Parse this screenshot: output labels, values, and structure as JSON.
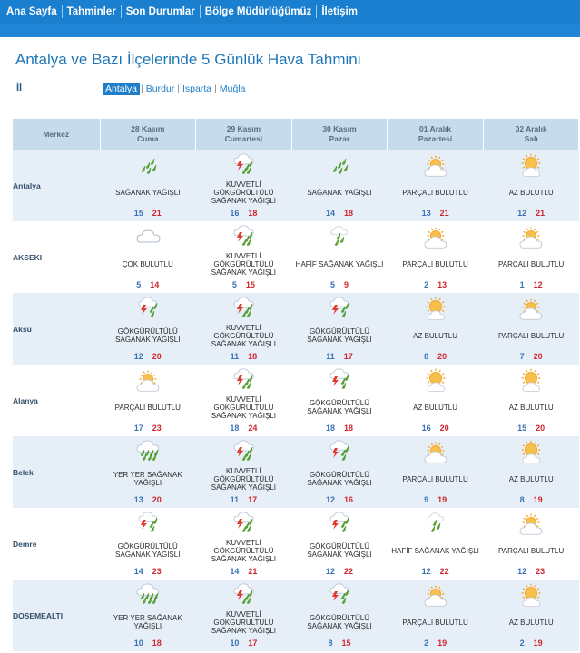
{
  "nav": [
    "Ana Sayfa",
    "Tahminler",
    "Son Durumlar",
    "Bölge Müdürlüğümüz",
    "İletişim"
  ],
  "title": "Antalya ve Bazı İlçelerinde 5 Günlük Hava Tahmini",
  "il_label": "İl",
  "provinces": [
    {
      "name": "Antalya",
      "active": true
    },
    {
      "name": "Burdur",
      "active": false
    },
    {
      "name": "Isparta",
      "active": false
    },
    {
      "name": "Muğla",
      "active": false
    }
  ],
  "table": {
    "merkez_label": "Merkez",
    "days": [
      {
        "date": "28 Kasım",
        "weekday": "Cuma"
      },
      {
        "date": "29 Kasım",
        "weekday": "Cumartesi"
      },
      {
        "date": "30 Kasım",
        "weekday": "Pazar"
      },
      {
        "date": "01 Aralık",
        "weekday": "Pazartesi"
      },
      {
        "date": "02 Aralık",
        "weekday": "Salı"
      }
    ],
    "rows": [
      {
        "city": "Antalya",
        "cells": [
          {
            "icon": "rain-showers-icon",
            "desc": "SAĞANAK YAĞIŞLI",
            "min": "15",
            "max": "21"
          },
          {
            "icon": "severe-thunderstorm-rain-icon",
            "desc": "KUVVETLİ GÖKGÜRÜLTÜLÜ SAĞANAK YAĞIŞLI",
            "min": "16",
            "max": "18"
          },
          {
            "icon": "rain-showers-icon",
            "desc": "SAĞANAK YAĞIŞLI",
            "min": "14",
            "max": "18"
          },
          {
            "icon": "partly-cloudy-icon",
            "desc": "PARÇALI BULUTLU",
            "min": "13",
            "max": "21"
          },
          {
            "icon": "mostly-sunny-icon",
            "desc": "AZ BULUTLU",
            "min": "12",
            "max": "21"
          }
        ]
      },
      {
        "city": "AKSEKI",
        "cells": [
          {
            "icon": "cloudy-icon",
            "desc": "ÇOK BULUTLU",
            "min": "5",
            "max": "14"
          },
          {
            "icon": "severe-thunderstorm-rain-icon",
            "desc": "KUVVETLİ GÖKGÜRÜLTÜLÜ SAĞANAK YAĞIŞLI",
            "min": "5",
            "max": "15"
          },
          {
            "icon": "light-rain-showers-icon",
            "desc": "HAFİF SAĞANAK YAĞIŞLI",
            "min": "5",
            "max": "9"
          },
          {
            "icon": "partly-cloudy-icon",
            "desc": "PARÇALI BULUTLU",
            "min": "2",
            "max": "13"
          },
          {
            "icon": "partly-cloudy-icon",
            "desc": "PARÇALI BULUTLU",
            "min": "1",
            "max": "12"
          }
        ]
      },
      {
        "city": "Aksu",
        "cells": [
          {
            "icon": "thunderstorm-rain-icon",
            "desc": "GÖKGÜRÜLTÜLÜ SAĞANAK YAĞIŞLI",
            "min": "12",
            "max": "20"
          },
          {
            "icon": "severe-thunderstorm-rain-icon",
            "desc": "KUVVETLİ GÖKGÜRÜLTÜLÜ SAĞANAK YAĞIŞLI",
            "min": "11",
            "max": "18"
          },
          {
            "icon": "thunderstorm-rain-icon",
            "desc": "GÖKGÜRÜLTÜLÜ SAĞANAK YAĞIŞLI",
            "min": "11",
            "max": "17"
          },
          {
            "icon": "mostly-sunny-icon",
            "desc": "AZ BULUTLU",
            "min": "8",
            "max": "20"
          },
          {
            "icon": "partly-cloudy-icon",
            "desc": "PARÇALI BULUTLU",
            "min": "7",
            "max": "20"
          }
        ]
      },
      {
        "city": "Alanya",
        "cells": [
          {
            "icon": "partly-cloudy-icon",
            "desc": "PARÇALI BULUTLU",
            "min": "17",
            "max": "23"
          },
          {
            "icon": "severe-thunderstorm-rain-icon",
            "desc": "KUVVETLİ GÖKGÜRÜLTÜLÜ SAĞANAK YAĞIŞLI",
            "min": "18",
            "max": "24"
          },
          {
            "icon": "thunderstorm-rain-icon",
            "desc": "GÖKGÜRÜLTÜLÜ SAĞANAK YAĞIŞLI",
            "min": "18",
            "max": "18"
          },
          {
            "icon": "mostly-sunny-icon",
            "desc": "AZ BULUTLU",
            "min": "16",
            "max": "20"
          },
          {
            "icon": "mostly-sunny-icon",
            "desc": "AZ BULUTLU",
            "min": "15",
            "max": "20"
          }
        ]
      },
      {
        "city": "Belek",
        "cells": [
          {
            "icon": "scattered-showers-icon",
            "desc": "YER YER SAĞANAK YAĞIŞLI",
            "min": "13",
            "max": "20"
          },
          {
            "icon": "severe-thunderstorm-rain-icon",
            "desc": "KUVVETLİ GÖKGÜRÜLTÜLÜ SAĞANAK YAĞIŞLI",
            "min": "11",
            "max": "17"
          },
          {
            "icon": "thunderstorm-rain-icon",
            "desc": "GÖKGÜRÜLTÜLÜ SAĞANAK YAĞIŞLI",
            "min": "12",
            "max": "16"
          },
          {
            "icon": "partly-cloudy-icon",
            "desc": "PARÇALI BULUTLU",
            "min": "9",
            "max": "19"
          },
          {
            "icon": "mostly-sunny-icon",
            "desc": "AZ BULUTLU",
            "min": "8",
            "max": "19"
          }
        ]
      },
      {
        "city": "Demre",
        "cells": [
          {
            "icon": "thunderstorm-rain-icon",
            "desc": "GÖKGÜRÜLTÜLÜ SAĞANAK YAĞIŞLI",
            "min": "14",
            "max": "23"
          },
          {
            "icon": "severe-thunderstorm-rain-icon",
            "desc": "KUVVETLİ GÖKGÜRÜLTÜLÜ SAĞANAK YAĞIŞLI",
            "min": "14",
            "max": "21"
          },
          {
            "icon": "thunderstorm-rain-icon",
            "desc": "GÖKGÜRÜLTÜLÜ SAĞANAK YAĞIŞLI",
            "min": "12",
            "max": "22"
          },
          {
            "icon": "light-rain-showers-icon",
            "desc": "HAFİF SAĞANAK YAĞIŞLI",
            "min": "12",
            "max": "22"
          },
          {
            "icon": "partly-cloudy-icon",
            "desc": "PARÇALI BULUTLU",
            "min": "12",
            "max": "23"
          }
        ]
      },
      {
        "city": "DOSEMEALTI",
        "cells": [
          {
            "icon": "scattered-showers-icon",
            "desc": "YER YER SAĞANAK YAĞIŞLI",
            "min": "10",
            "max": "18"
          },
          {
            "icon": "severe-thunderstorm-rain-icon",
            "desc": "KUVVETLİ GÖKGÜRÜLTÜLÜ SAĞANAK YAĞIŞLI",
            "min": "10",
            "max": "17"
          },
          {
            "icon": "thunderstorm-rain-icon",
            "desc": "GÖKGÜRÜLTÜLÜ SAĞANAK YAĞIŞLI",
            "min": "8",
            "max": "15"
          },
          {
            "icon": "partly-cloudy-icon",
            "desc": "PARÇALI BULUTLU",
            "min": "2",
            "max": "19"
          },
          {
            "icon": "mostly-sunny-icon",
            "desc": "AZ BULUTLU",
            "min": "2",
            "max": "19"
          }
        ]
      }
    ]
  },
  "colors": {
    "nav_bg": "#1b7fd0",
    "title": "#2077b8",
    "header_bg": "#c6dbec",
    "row_alt": "#e6eff8",
    "temp_min": "#3a72b5",
    "temp_max": "#d0262d",
    "rain_green": "#5caa2f",
    "sun": "#f2a62b"
  }
}
